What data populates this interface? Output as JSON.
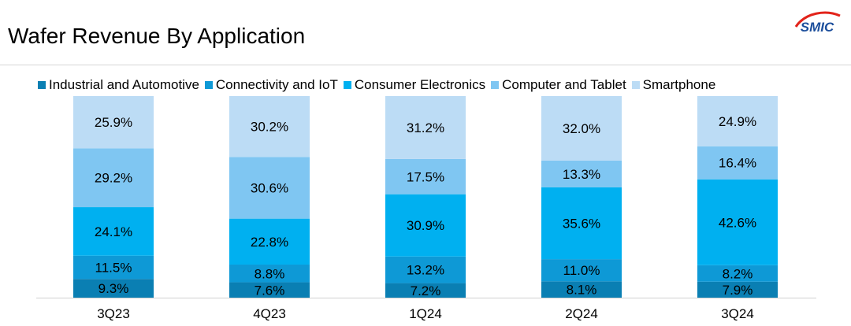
{
  "page": {
    "title": "Wafer Revenue By Application",
    "logo_text": "SMIC"
  },
  "colors": {
    "Industrial and Automotive": "#0a7fb3",
    "Connectivity and IoT": "#0e99d6",
    "Consumer Electronics": "#00b0f0",
    "Computer and Tablet": "#7fc6f2",
    "Smartphone": "#bcdcf5"
  },
  "chart_data": {
    "type": "bar",
    "stacked": true,
    "title": "Wafer Revenue By Application",
    "xlabel": "",
    "ylabel": "",
    "ylim": [
      0,
      100
    ],
    "legend_position": "top",
    "categories": [
      "3Q23",
      "4Q23",
      "1Q24",
      "2Q24",
      "3Q24"
    ],
    "series": [
      {
        "name": "Industrial and Automotive",
        "values": [
          9.3,
          7.6,
          7.2,
          8.1,
          7.9
        ],
        "labels": [
          "9.3%",
          "7.6%",
          "7.2%",
          "8.1%",
          "7.9%"
        ]
      },
      {
        "name": "Connectivity and IoT",
        "values": [
          11.5,
          8.8,
          13.2,
          11.0,
          8.2
        ],
        "labels": [
          "11.5%",
          "8.8%",
          "13.2%",
          "11.0%",
          "8.2%"
        ]
      },
      {
        "name": "Consumer Electronics",
        "values": [
          24.1,
          22.8,
          30.9,
          35.6,
          42.6
        ],
        "labels": [
          "24.1%",
          "22.8%",
          "30.9%",
          "35.6%",
          "42.6%"
        ]
      },
      {
        "name": "Computer and Tablet",
        "values": [
          29.2,
          30.6,
          17.5,
          13.3,
          16.4
        ],
        "labels": [
          "29.2%",
          "30.6%",
          "17.5%",
          "13.3%",
          "16.4%"
        ]
      },
      {
        "name": "Smartphone",
        "values": [
          25.9,
          30.2,
          31.2,
          32.0,
          24.9
        ],
        "labels": [
          "25.9%",
          "30.2%",
          "31.2%",
          "32.0%",
          "24.9%"
        ]
      }
    ]
  }
}
